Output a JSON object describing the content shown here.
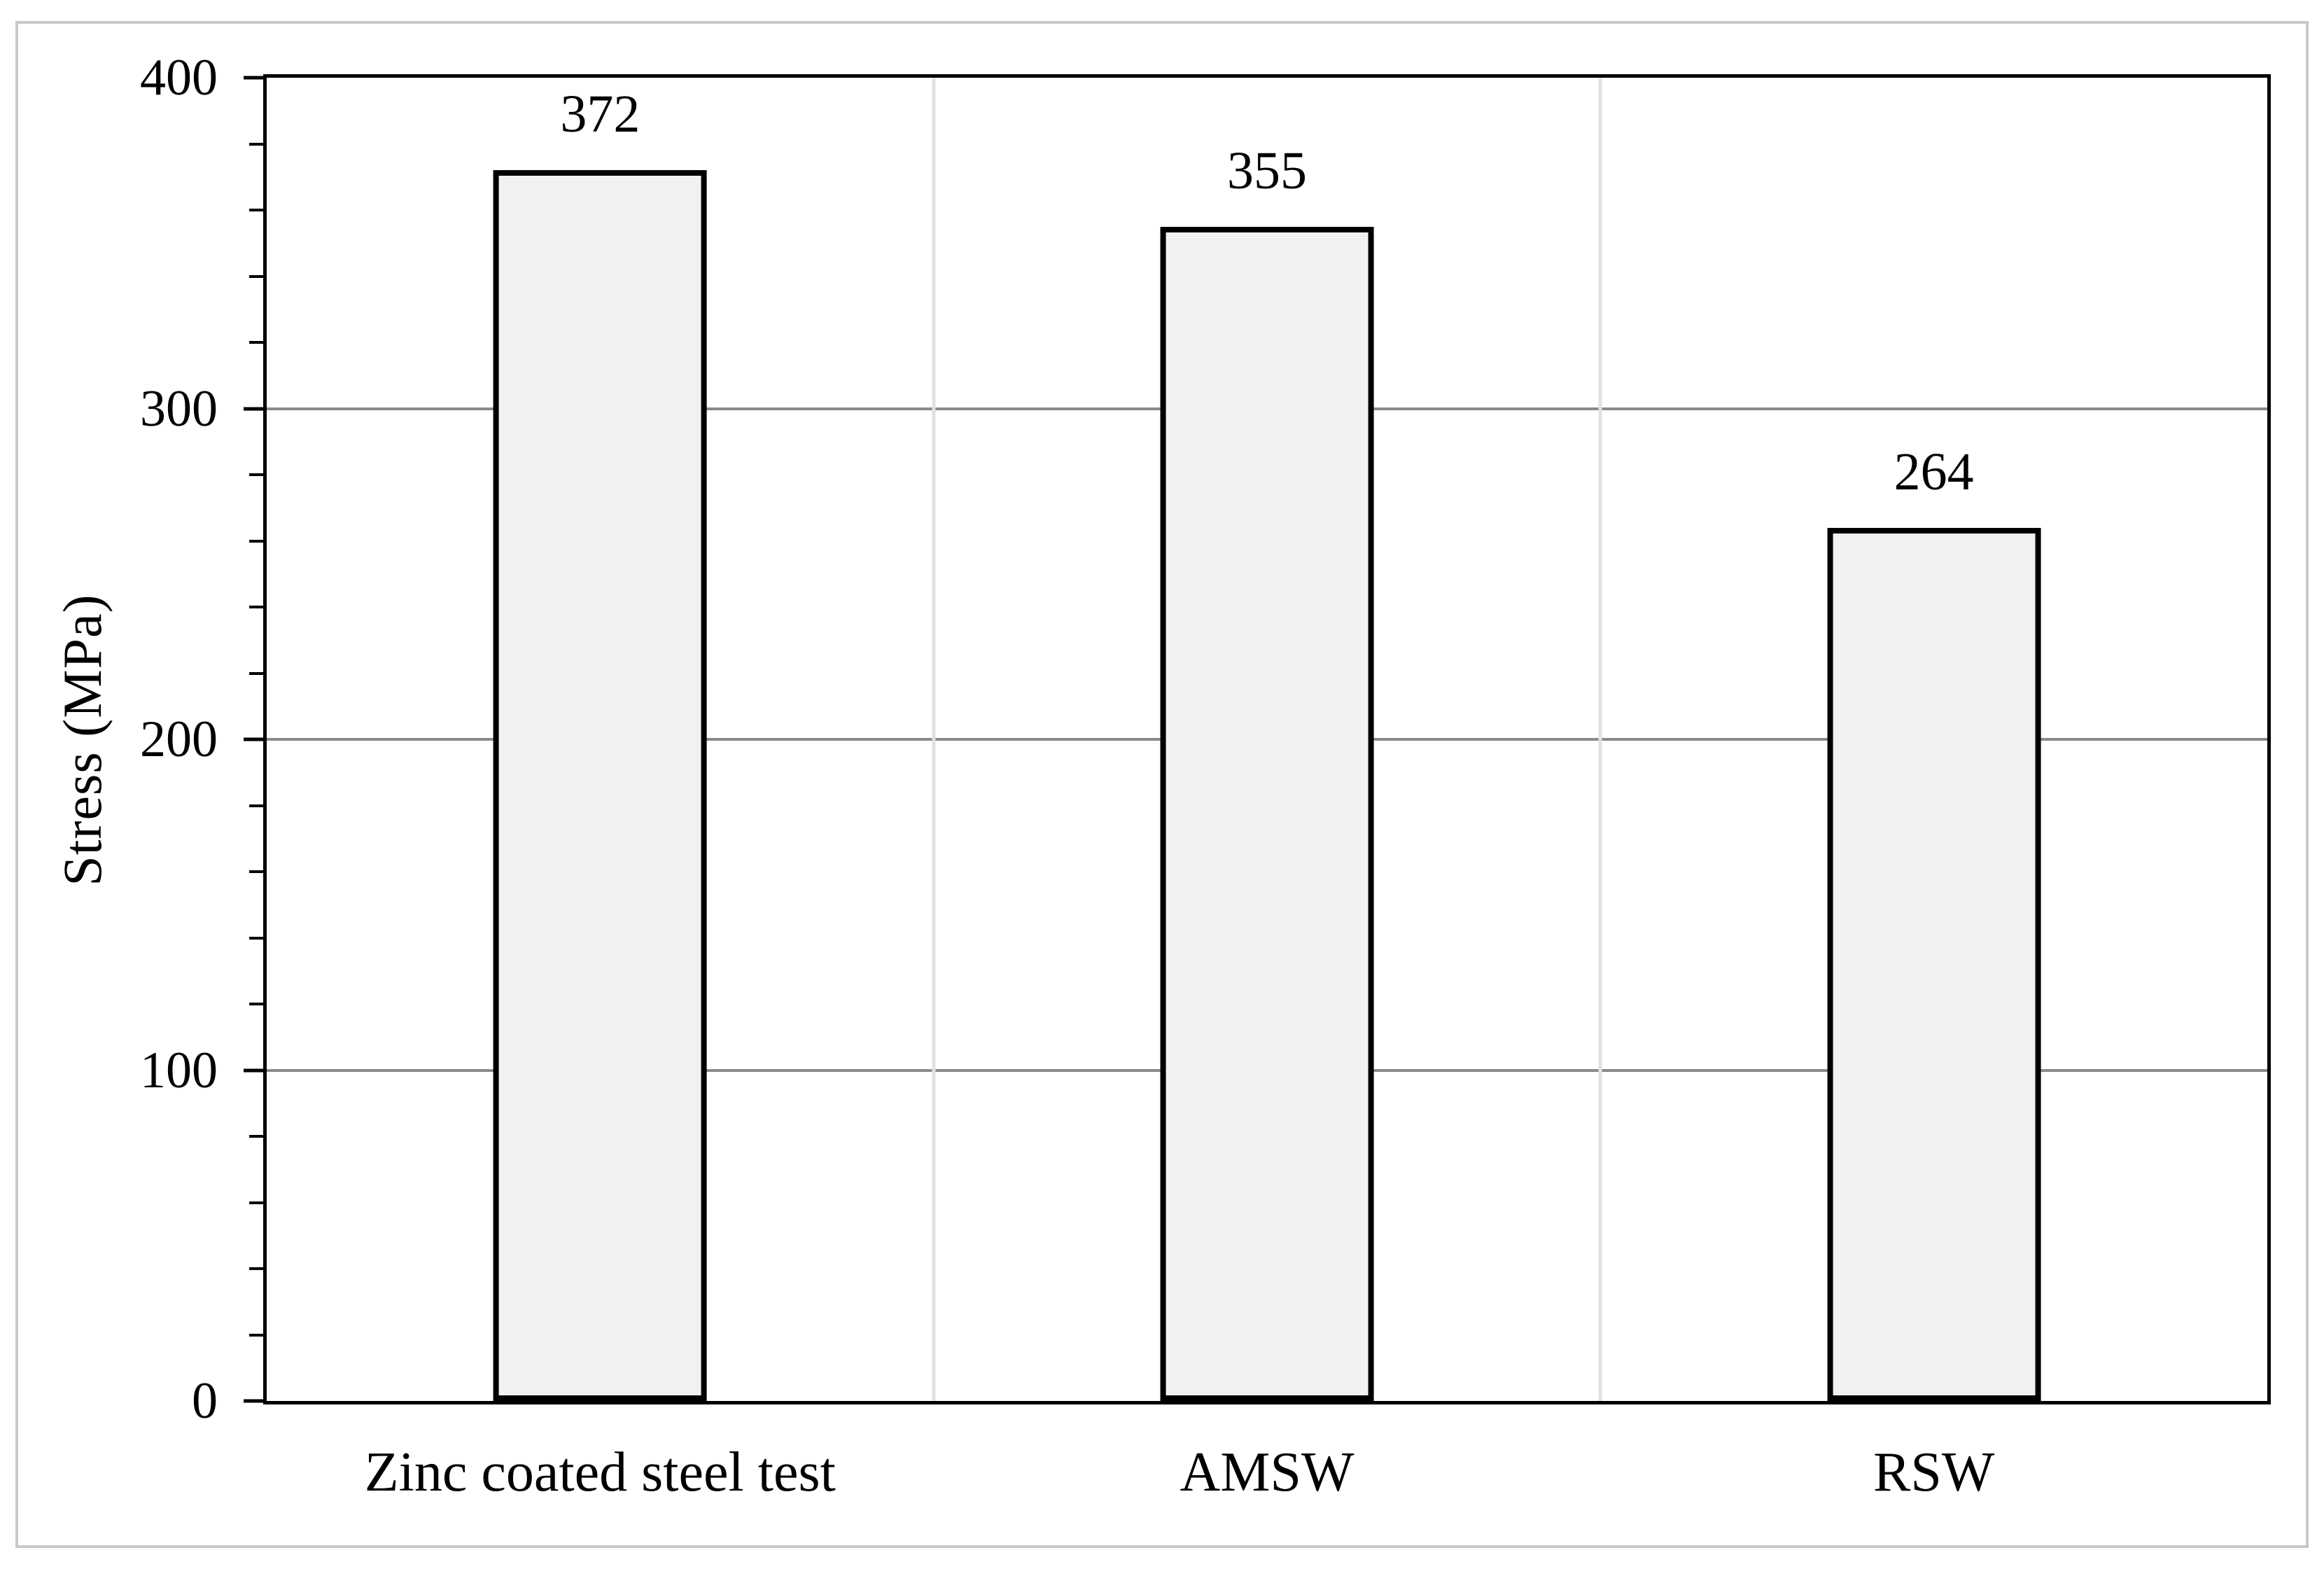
{
  "figure": {
    "background": "#ffffff",
    "frame_color": "#c8c8c8"
  },
  "chart_data": {
    "type": "bar",
    "title": "",
    "categories": [
      "Zinc coated steel test",
      "AMSW",
      "RSW"
    ],
    "values": [
      372,
      355,
      264
    ],
    "value_labels": [
      "372",
      "355",
      "264"
    ],
    "xlabel": "",
    "ylabel": "Stress (MPa)",
    "ylim": [
      0,
      400
    ],
    "yticks": [
      0,
      100,
      200,
      300,
      400
    ],
    "ytick_labels": [
      "0",
      "100",
      "200",
      "300",
      "400"
    ],
    "minor_tick_step": 20,
    "grid": {
      "horizontal_major": true,
      "vertical_category_separators": true
    },
    "legend": "none",
    "bar_width_fraction_of_category": 0.32,
    "colors": {
      "bar_fill": "#f1f1f1",
      "bar_border": "#000000",
      "axis": "#000000",
      "gridline_horizontal": "#8a8a8a",
      "gridline_vertical": "#e2e2e2",
      "text": "#000000"
    }
  }
}
